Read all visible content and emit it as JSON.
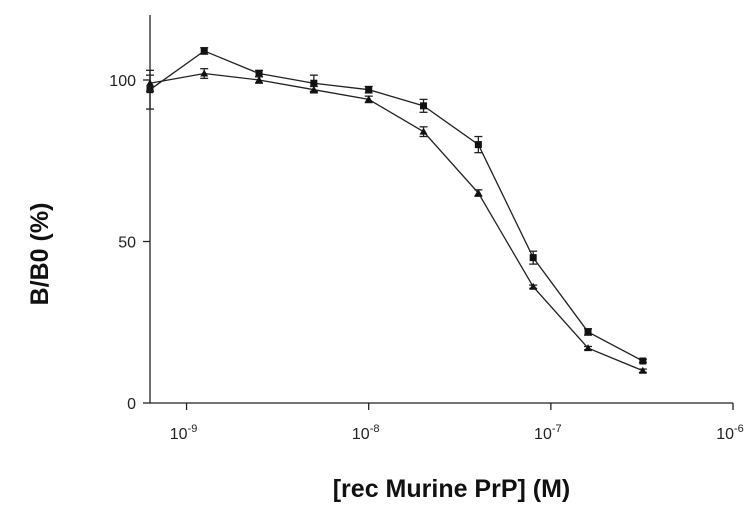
{
  "chart_data": {
    "type": "line",
    "title": "",
    "xlabel": "[rec Murine PrP] (M)",
    "ylabel": "B/B0 (%)",
    "x_scale": "log",
    "xlim": [
      6.3e-10,
      1e-06
    ],
    "ylim": [
      0,
      120
    ],
    "grid": false,
    "legend": "none",
    "x_ticks": [
      {
        "value": 1e-09,
        "base": "10",
        "exp": "-9"
      },
      {
        "value": 1e-08,
        "base": "10",
        "exp": "-8"
      },
      {
        "value": 1e-07,
        "base": "10",
        "exp": "-7"
      },
      {
        "value": 1e-06,
        "base": "10",
        "exp": "-6"
      }
    ],
    "y_ticks": [
      0,
      50,
      100
    ],
    "x": [
      6.3e-10,
      1.25e-09,
      2.5e-09,
      5e-09,
      1e-08,
      2e-08,
      4e-08,
      8e-08,
      1.6e-07,
      3.2e-07
    ],
    "series": [
      {
        "marker": "square",
        "values": [
          97,
          109,
          102,
          99,
          97,
          92,
          80,
          45,
          22,
          13
        ],
        "errors": [
          6,
          1,
          1,
          2.5,
          1,
          2,
          2.5,
          2,
          1,
          0.5
        ]
      },
      {
        "marker": "triangle",
        "values": [
          99,
          102,
          100,
          97,
          94,
          84,
          65,
          36,
          17,
          10
        ],
        "errors": [
          2.5,
          1.5,
          1,
          1,
          1,
          1.5,
          1,
          0.5,
          0.5,
          0.5
        ]
      }
    ]
  }
}
